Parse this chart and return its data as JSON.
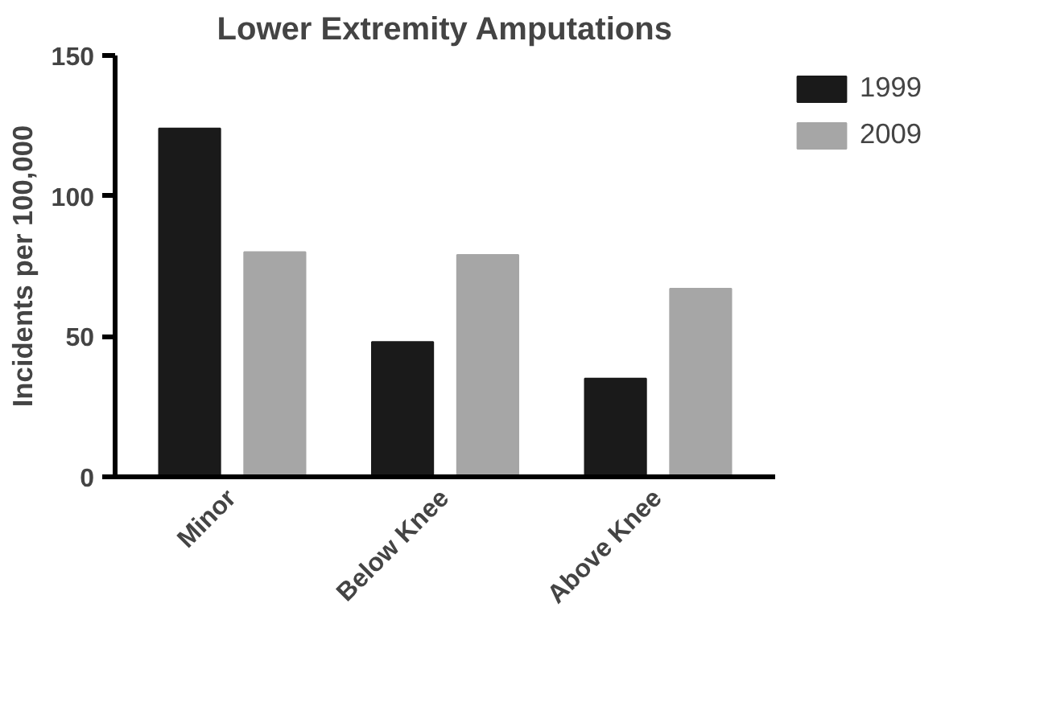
{
  "chart_data": {
    "type": "bar",
    "title": "Lower Extremity Amputations",
    "ylabel": "Incidents per 100,000",
    "categories": [
      "Minor",
      "Below Knee",
      "Above Knee"
    ],
    "series": [
      {
        "name": "1999",
        "color": "#1a1a1a",
        "values": [
          124,
          48,
          35
        ]
      },
      {
        "name": "2009",
        "color": "#a6a6a6",
        "values": [
          80,
          79,
          67
        ]
      }
    ],
    "ylim": [
      0,
      150
    ],
    "yticks": [
      0,
      50,
      100,
      150
    ],
    "legend": "right",
    "grid": false
  }
}
